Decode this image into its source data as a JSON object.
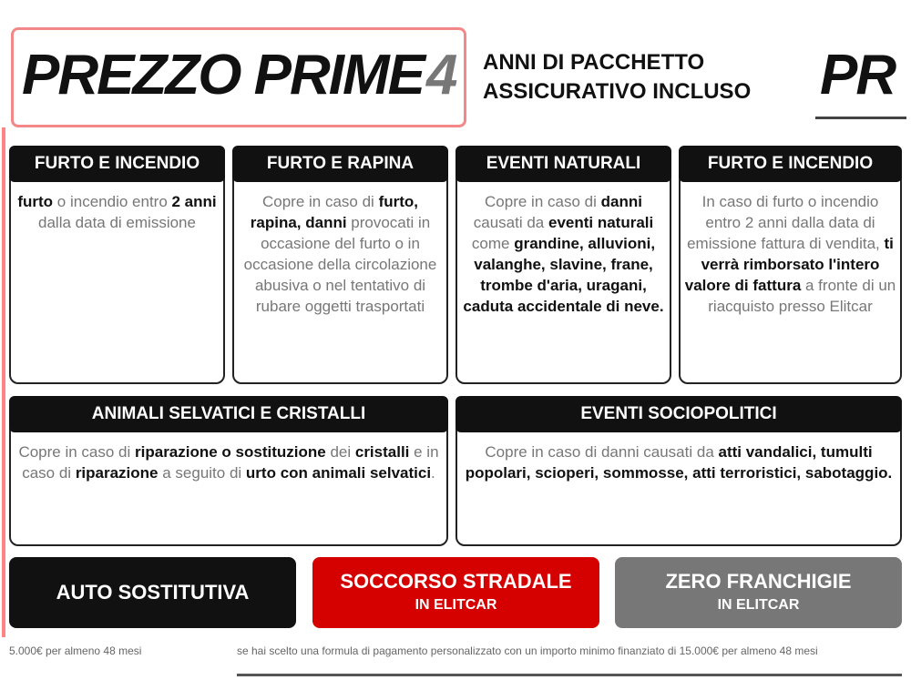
{
  "header": {
    "title": "PREZZO PRIME",
    "number": "4",
    "subtitle_line1": "ANNI DI PACCHETTO",
    "subtitle_line2": "ASSICURATIVO INCLUSO",
    "title_echo": "PR"
  },
  "coverages": [
    {
      "tag": "FURTO E INCENDIO",
      "text_html": "<b>furto</b> o incendio entro <b>2 anni</b> dalla data di emissione"
    },
    {
      "tag": "FURTO E RAPINA",
      "text_html": "Copre in caso di <b>furto, rapina, danni</b> provocati in occasione del furto o in occasione della circolazione abusiva o nel tentativo di rubare oggetti trasportati"
    },
    {
      "tag": "EVENTI NATURALI",
      "text_html": "Copre in caso di <b>danni</b> causati da <b>eventi naturali</b> come <b>grandine, alluvioni, valanghe, slavine, frane, trombe d'aria, uragani, caduta accidentale di neve.</b>"
    },
    {
      "tag": "FURTO E INCENDIO",
      "text_html": "In caso di furto o incendio entro 2 anni dalla data di emissione fattura di vendita, <b>ti verrà rimborsato l'intero valore di fattura</b> a fronte di un riacquisto presso Elitcar"
    },
    {
      "tag": "ANIMALI SELVATICI E CRISTALLI",
      "text_html": "Copre in caso di <b>riparazione o sostituzione</b> dei <b>cristalli</b> e in caso di <b>riparazione</b> a seguito di <b>urto con animali selvatici</b>."
    },
    {
      "tag": "EVENTI SOCIOPOLITICI",
      "text_html": "Copre in caso di danni causati da <b>atti vandalici, tumulti popolari, scioperi, sommosse, atti terroristici, sabotaggio.</b>"
    }
  ],
  "bottom_tags": {
    "auto": "AUTO SOSTITUTIVA",
    "soccorso": "SOCCORSO STRADALE",
    "soccorso_sub": "IN ELITCAR",
    "zero": "ZERO FRANCHIGIE",
    "zero_sub": "IN ELITCAR"
  },
  "footnote": {
    "left": "5.000€ per almeno 48 mesi",
    "right": "se hai scelto una formula di pagamento personalizzato con un importo minimo finanziato di 15.000€ per almeno 48 mesi"
  },
  "colors": {
    "accent": "#e30613",
    "dark": "#111111",
    "grey": "#777777"
  }
}
